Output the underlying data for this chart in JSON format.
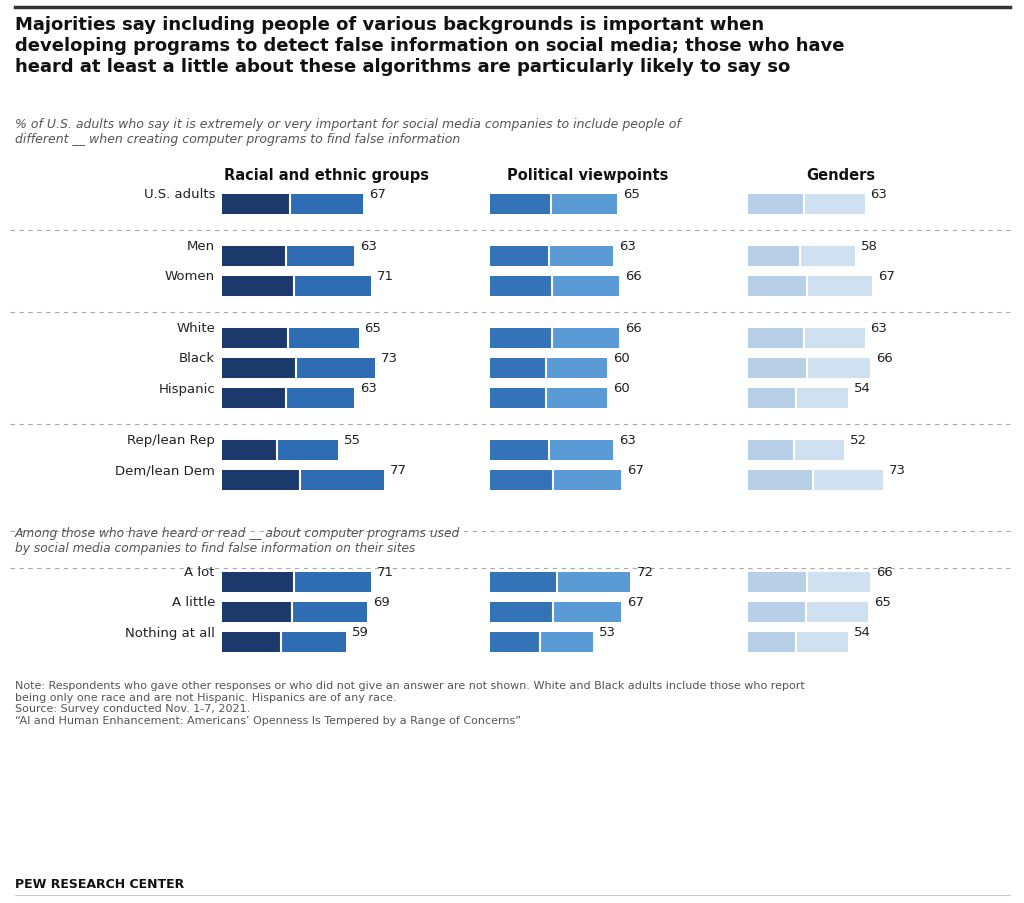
{
  "title": "Majorities say including people of various backgrounds is important when\ndeveloping programs to detect false information on social media; those who have\nheard at least a little about these algorithms are particularly likely to say so",
  "subtitle": "% of U.S. adults who say it is extremely or very important for social media companies to include people of\ndifferent __ when creating computer programs to find false information",
  "col_headers": [
    "Racial and ethnic groups",
    "Political viewpoints",
    "Genders"
  ],
  "rows": [
    {
      "label": "U.S. adults",
      "group": 0,
      "vals": [
        67,
        65,
        63
      ]
    },
    {
      "label": "Men",
      "group": 1,
      "vals": [
        63,
        63,
        58
      ]
    },
    {
      "label": "Women",
      "group": 1,
      "vals": [
        71,
        66,
        67
      ]
    },
    {
      "label": "White",
      "group": 2,
      "vals": [
        65,
        66,
        63
      ]
    },
    {
      "label": "Black",
      "group": 2,
      "vals": [
        73,
        60,
        66
      ]
    },
    {
      "label": "Hispanic",
      "group": 2,
      "vals": [
        63,
        60,
        54
      ]
    },
    {
      "label": "Rep/lean Rep",
      "group": 3,
      "vals": [
        55,
        63,
        52
      ]
    },
    {
      "label": "Dem/lean Dem",
      "group": 3,
      "vals": [
        77,
        67,
        73
      ]
    },
    {
      "label": "A lot",
      "group": 4,
      "vals": [
        71,
        72,
        66
      ]
    },
    {
      "label": "A little",
      "group": 4,
      "vals": [
        69,
        67,
        65
      ]
    },
    {
      "label": "Nothing at all",
      "group": 4,
      "vals": [
        59,
        53,
        54
      ]
    }
  ],
  "col_colors": [
    [
      "#1b3a6b",
      "#2e6db4"
    ],
    [
      "#3473b8",
      "#5b9bd5"
    ],
    [
      "#b8cfe8",
      "#cfe0f0"
    ]
  ],
  "note_text": "Note: Respondents who gave other responses or who did not give an answer are not shown. White and Black adults include those who report\nbeing only one race and are not Hispanic. Hispanics are of any race.\nSource: Survey conducted Nov. 1-7, 2021.\n“AI and Human Enhancement: Americans’ Openness Is Tempered by a Range of Concerns”",
  "pew_label": "PEW RESEARCH CENTER",
  "separator_label": "Among those who have heard or read __ about computer programs used\nby social media companies to find false information on their sites",
  "background_color": "#ffffff"
}
